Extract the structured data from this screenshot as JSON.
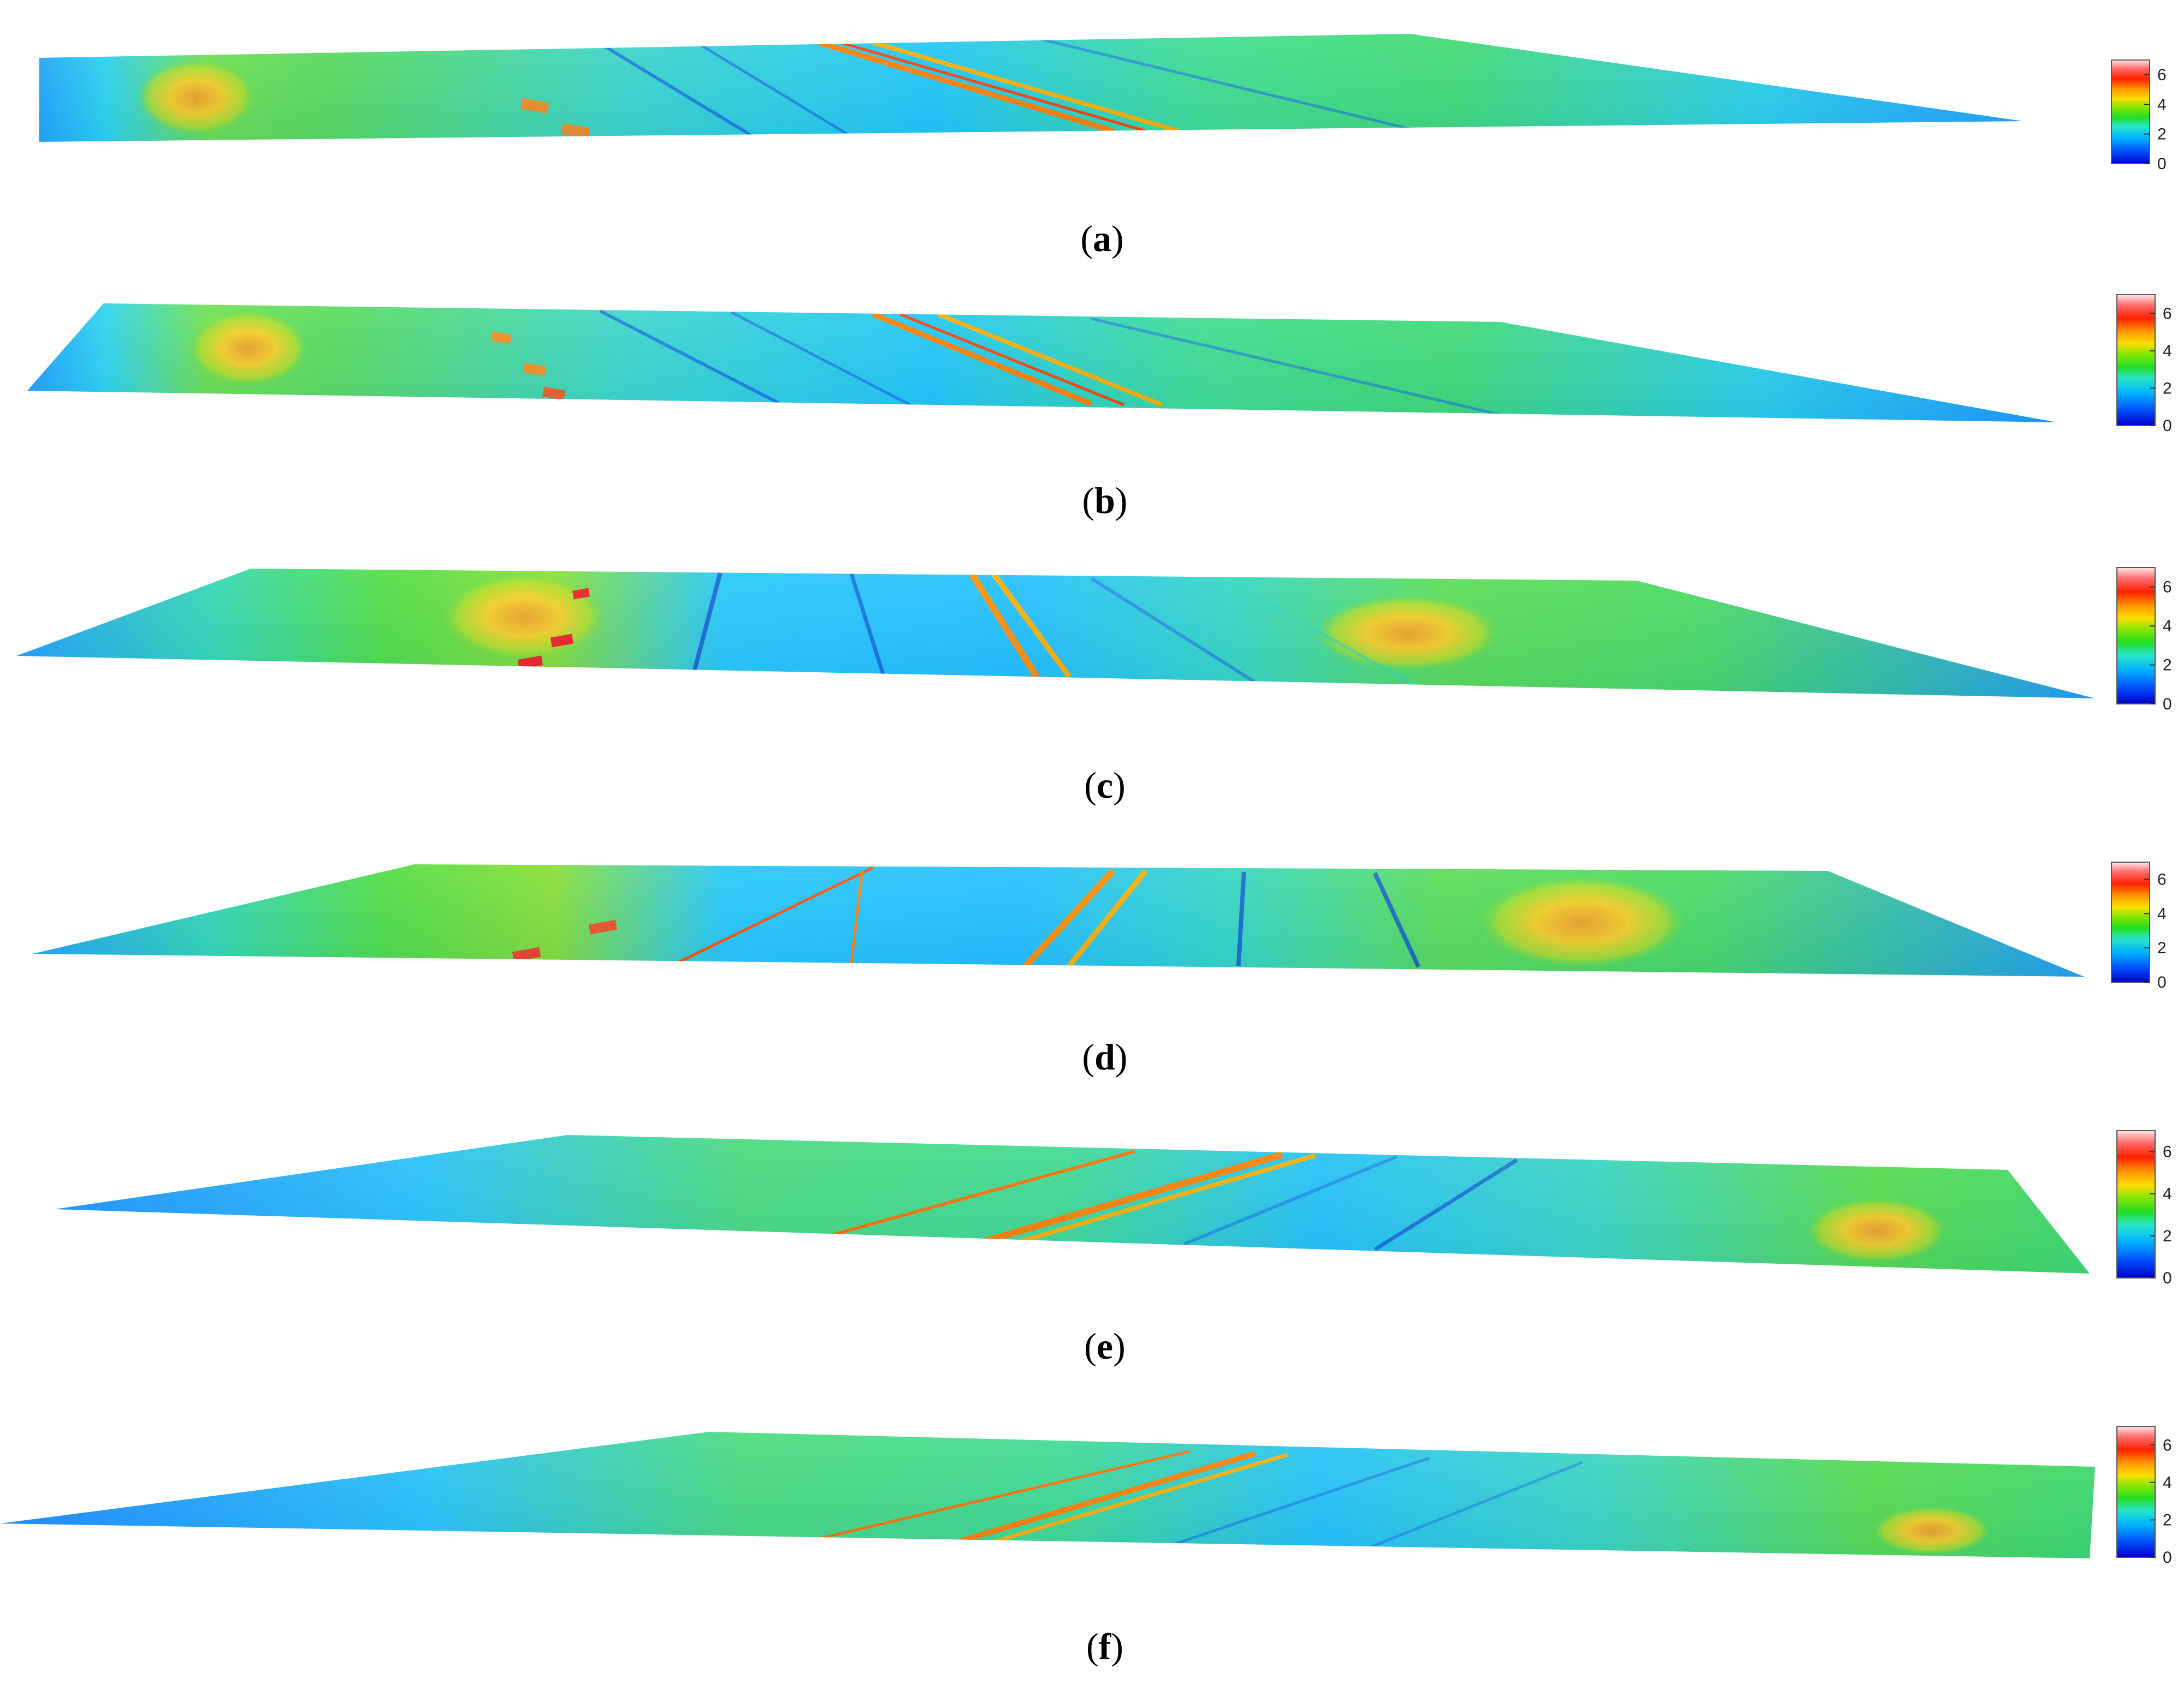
{
  "colors": {
    "background": "#ffffff",
    "colormap": [
      "#0000c8",
      "#0050ff",
      "#00b4ff",
      "#28e6c8",
      "#22dd22",
      "#8ce600",
      "#ffdc00",
      "#ff9600",
      "#ff2000",
      "#ff6e6e",
      "#ffe6e6"
    ]
  },
  "colorbar": {
    "range": [
      0,
      7
    ],
    "ticks": [
      "0",
      "2",
      "4",
      "6"
    ]
  },
  "panels": [
    {
      "id": "a",
      "caption_open": "(",
      "caption_letter": "a",
      "caption_close": ")"
    },
    {
      "id": "b",
      "caption_open": "(",
      "caption_letter": "b",
      "caption_close": ")"
    },
    {
      "id": "c",
      "caption_open": "(",
      "caption_letter": "c",
      "caption_close": ")"
    },
    {
      "id": "d",
      "caption_open": "(",
      "caption_letter": "d",
      "caption_close": ")"
    },
    {
      "id": "e",
      "caption_open": "(",
      "caption_letter": "e",
      "caption_close": ")"
    },
    {
      "id": "f",
      "caption_open": "(",
      "caption_letter": "f",
      "caption_close": ")"
    }
  ]
}
